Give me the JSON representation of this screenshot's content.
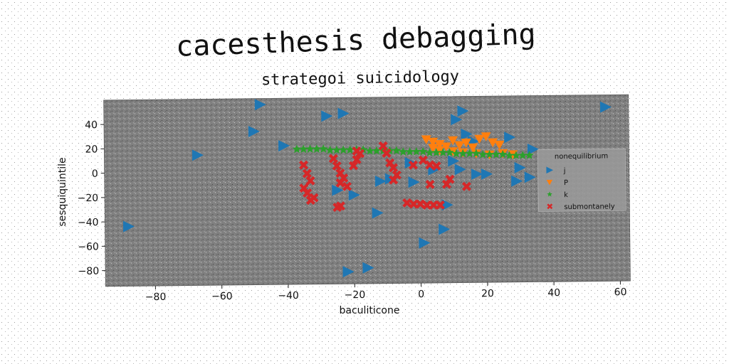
{
  "chart_data": {
    "type": "scatter",
    "title": "cacesthesis debagging",
    "subtitle": "strategoi suicidology",
    "xlabel": "baculiticone",
    "ylabel": "sesquiquintile",
    "xlim": [
      -95,
      63
    ],
    "ylim": [
      -93,
      60
    ],
    "xticks": [
      -80,
      -60,
      -40,
      -20,
      0,
      20,
      40,
      60
    ],
    "yticks": [
      -80,
      -60,
      -40,
      -20,
      0,
      20,
      40
    ],
    "grid": false,
    "background": "#808080",
    "legend": {
      "title": "nonequilibrium",
      "position": "right"
    },
    "series": [
      {
        "name": "j",
        "marker": "triangle-right",
        "color": "#1f77b4",
        "points": [
          [
            -88,
            -44
          ],
          [
            -67,
            14
          ],
          [
            -50,
            33
          ],
          [
            -48,
            55
          ],
          [
            -41,
            21
          ],
          [
            -28,
            45
          ],
          [
            -23,
            47
          ],
          [
            -25,
            -16
          ],
          [
            -20,
            -20
          ],
          [
            -22,
            -83
          ],
          [
            -16,
            -80
          ],
          [
            -13,
            -35
          ],
          [
            -12,
            -9
          ],
          [
            -9,
            -7
          ],
          [
            -3,
            6
          ],
          [
            -2,
            -10
          ],
          [
            1,
            -60
          ],
          [
            4,
            0
          ],
          [
            7,
            -49
          ],
          [
            8,
            -29
          ],
          [
            10,
            7
          ],
          [
            11,
            41
          ],
          [
            12,
            0
          ],
          [
            13,
            48
          ],
          [
            14,
            29
          ],
          [
            16,
            23
          ],
          [
            17,
            -4
          ],
          [
            20,
            -4
          ],
          [
            27,
            26
          ],
          [
            29,
            -10
          ],
          [
            30,
            1
          ],
          [
            33,
            -7
          ],
          [
            34,
            16
          ],
          [
            56,
            50
          ]
        ]
      },
      {
        "name": "P",
        "marker": "triangle-down",
        "color": "#ff7f0e",
        "points": [
          [
            2,
            25
          ],
          [
            4,
            23
          ],
          [
            6,
            21
          ],
          [
            8,
            19
          ],
          [
            10,
            24
          ],
          [
            12,
            20
          ],
          [
            14,
            22
          ],
          [
            16,
            18
          ],
          [
            18,
            25
          ],
          [
            20,
            27
          ],
          [
            22,
            22
          ],
          [
            24,
            20
          ],
          [
            4,
            18
          ],
          [
            6,
            16
          ],
          [
            10,
            15
          ],
          [
            13,
            14
          ],
          [
            17,
            13
          ],
          [
            21,
            12
          ],
          [
            25,
            13
          ],
          [
            28,
            12
          ]
        ]
      },
      {
        "name": "k",
        "marker": "star",
        "color": "#2ca02c",
        "points": [
          [
            -37,
            18
          ],
          [
            -35,
            18
          ],
          [
            -33,
            18
          ],
          [
            -31,
            18
          ],
          [
            -29,
            18
          ],
          [
            -27,
            17
          ],
          [
            -25,
            17
          ],
          [
            -23,
            17
          ],
          [
            -21,
            17
          ],
          [
            -19,
            17
          ],
          [
            -17,
            17
          ],
          [
            -15,
            16
          ],
          [
            -13,
            16
          ],
          [
            -11,
            16
          ],
          [
            -9,
            16
          ],
          [
            -7,
            16
          ],
          [
            -5,
            15
          ],
          [
            -3,
            15
          ],
          [
            -1,
            15
          ],
          [
            1,
            15
          ],
          [
            3,
            14
          ],
          [
            5,
            14
          ],
          [
            7,
            14
          ],
          [
            9,
            14
          ],
          [
            11,
            13
          ],
          [
            13,
            13
          ],
          [
            15,
            13
          ],
          [
            17,
            13
          ],
          [
            19,
            12
          ],
          [
            21,
            12
          ],
          [
            23,
            12
          ],
          [
            25,
            12
          ],
          [
            27,
            11
          ],
          [
            29,
            11
          ],
          [
            31,
            11
          ],
          [
            33,
            11
          ]
        ]
      },
      {
        "name": "submontanely",
        "marker": "x",
        "color": "#d62728",
        "points": [
          [
            -35,
            5
          ],
          [
            -34,
            -2
          ],
          [
            -33,
            -8
          ],
          [
            -35,
            -14
          ],
          [
            -34,
            -18
          ],
          [
            -32,
            -22
          ],
          [
            -33,
            -24
          ],
          [
            -26,
            10
          ],
          [
            -25,
            4
          ],
          [
            -24,
            -2
          ],
          [
            -23,
            -6
          ],
          [
            -24,
            -10
          ],
          [
            -22,
            -13
          ],
          [
            -25,
            -30
          ],
          [
            -24,
            -29
          ],
          [
            -19,
            16
          ],
          [
            -18,
            14
          ],
          [
            -19,
            9
          ],
          [
            -20,
            4
          ],
          [
            -11,
            20
          ],
          [
            -10,
            14
          ],
          [
            -9,
            6
          ],
          [
            -8,
            2
          ],
          [
            -7,
            -4
          ],
          [
            -8,
            -8
          ],
          [
            -4,
            -27
          ],
          [
            -2,
            -28
          ],
          [
            0,
            -28
          ],
          [
            2,
            -29
          ],
          [
            4,
            -29
          ],
          [
            6,
            -29
          ],
          [
            -2,
            4
          ],
          [
            1,
            8
          ],
          [
            3,
            4
          ],
          [
            5,
            3
          ],
          [
            3,
            -12
          ],
          [
            8,
            -12
          ],
          [
            9,
            -8
          ],
          [
            14,
            -14
          ]
        ]
      }
    ]
  }
}
